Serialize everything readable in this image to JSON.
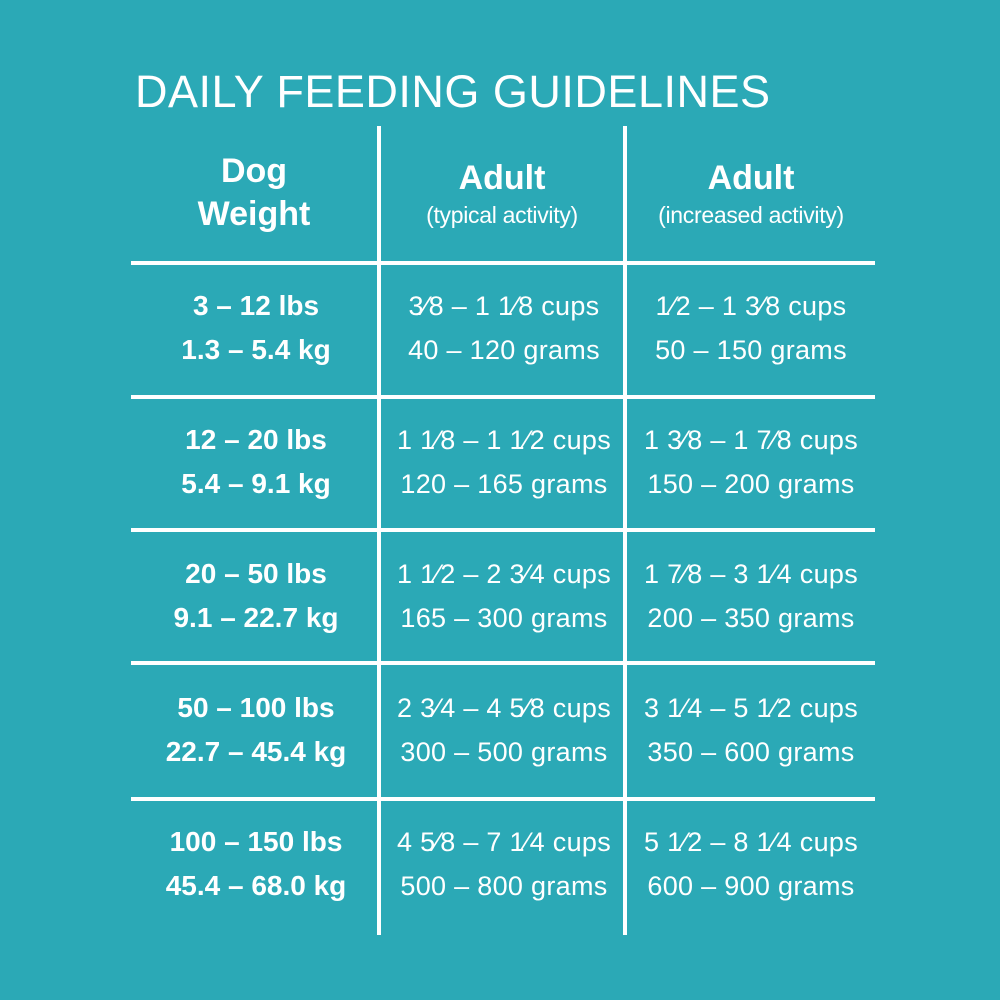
{
  "title": "DAILY FEEDING GUIDELINES",
  "headers": {
    "dog_weight_line1": "Dog",
    "dog_weight_line2": "Weight",
    "typical_title": "Adult",
    "typical_sub": "(typical activity)",
    "increased_title": "Adult",
    "increased_sub": "(increased activity)"
  },
  "rows": [
    {
      "lbs": "3 – 12 lbs",
      "kg": "1.3 – 5.4 kg",
      "typical_cups": "3⁄8 – 1 1⁄8 cups",
      "typical_grams": "40 – 120 grams",
      "increased_cups": "1⁄2 – 1 3⁄8 cups",
      "increased_grams": "50 – 150 grams"
    },
    {
      "lbs": "12 – 20 lbs",
      "kg": "5.4 – 9.1 kg",
      "typical_cups": "1 1⁄8 – 1 1⁄2 cups",
      "typical_grams": "120 – 165 grams",
      "increased_cups": "1 3⁄8 – 1 7⁄8 cups",
      "increased_grams": "150 – 200 grams"
    },
    {
      "lbs": "20 – 50 lbs",
      "kg": "9.1 – 22.7 kg",
      "typical_cups": "1 1⁄2 – 2 3⁄4 cups",
      "typical_grams": "165 – 300 grams",
      "increased_cups": "1 7⁄8 – 3 1⁄4 cups",
      "increased_grams": "200 – 350 grams"
    },
    {
      "lbs": "50 – 100 lbs",
      "kg": "22.7 – 45.4 kg",
      "typical_cups": "2 3⁄4 – 4 5⁄8 cups",
      "typical_grams": "300 – 500 grams",
      "increased_cups": "3 1⁄4 – 5 1⁄2 cups",
      "increased_grams": "350 – 600 grams"
    },
    {
      "lbs": "100 – 150 lbs",
      "kg": "45.4 – 68.0 kg",
      "typical_cups": "4 5⁄8 – 7 1⁄4 cups",
      "typical_grams": "500 – 800 grams",
      "increased_cups": "5 1⁄2 – 8 1⁄4 cups",
      "increased_grams": "600 – 900 grams"
    }
  ],
  "colors": {
    "background": "#2ba9b6",
    "text": "#ffffff",
    "rules": "#ffffff"
  }
}
